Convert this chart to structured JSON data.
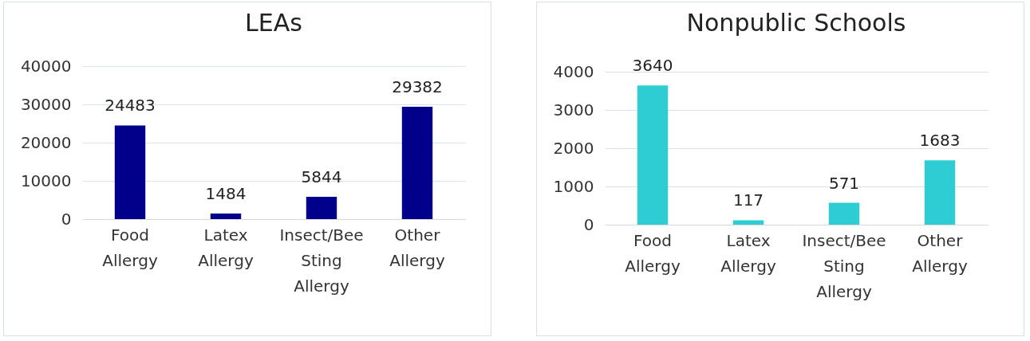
{
  "chart_data": [
    {
      "type": "bar",
      "title": "LEAs",
      "categories": [
        "Food Allergy",
        "Latex Allergy",
        "Insect/Bee Sting Allergy",
        "Other Allergy"
      ],
      "values": [
        24483,
        1484,
        5844,
        29382
      ],
      "color": "#00008b",
      "ylim": [
        0,
        40000
      ],
      "yticks": [
        0,
        10000,
        20000,
        30000,
        40000
      ],
      "grid": "y",
      "data_labels": true
    },
    {
      "type": "bar",
      "title": "Nonpublic Schools",
      "categories": [
        "Food Allergy",
        "Latex Allergy",
        "Insect/Bee Sting Allergy",
        "Other Allergy"
      ],
      "values": [
        3640,
        117,
        571,
        1683
      ],
      "color": "#2ecdd3",
      "ylim": [
        0,
        4000
      ],
      "yticks": [
        0,
        1000,
        2000,
        3000,
        4000
      ],
      "grid": "y",
      "data_labels": true
    }
  ]
}
